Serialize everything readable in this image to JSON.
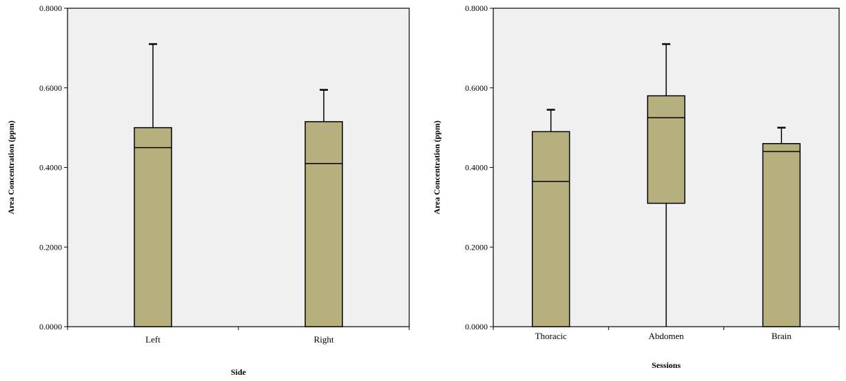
{
  "chart_data": [
    {
      "type": "box",
      "xlabel": "Side",
      "ylabel": "Area Concentration (ppm)",
      "ylim": [
        0,
        0.8
      ],
      "yticks": [
        "0.0000",
        "0.2000",
        "0.4000",
        "0.6000",
        "0.8000"
      ],
      "plot_background": "#f0f0f0",
      "box_color": "#b5b07e",
      "grid": false,
      "categories": [
        "Left",
        "Right"
      ],
      "boxes": [
        {
          "min": 0.0,
          "q1": 0.0,
          "median": 0.45,
          "q3": 0.5,
          "max": 0.71
        },
        {
          "min": 0.0,
          "q1": 0.0,
          "median": 0.41,
          "q3": 0.515,
          "max": 0.595
        }
      ]
    },
    {
      "type": "box",
      "xlabel": "Sessions",
      "ylabel": "Area Concentration (ppm)",
      "ylim": [
        0,
        0.8
      ],
      "yticks": [
        "0.0000",
        "0.2000",
        "0.4000",
        "0.6000",
        "0.8000"
      ],
      "plot_background": "#f0f0f0",
      "box_color": "#b5b07e",
      "grid": false,
      "categories": [
        "Thoracic",
        "Abdomen",
        "Brain"
      ],
      "boxes": [
        {
          "min": 0.0,
          "q1": 0.0,
          "median": 0.365,
          "q3": 0.49,
          "max": 0.545
        },
        {
          "min": 0.0,
          "q1": 0.31,
          "median": 0.525,
          "q3": 0.58,
          "max": 0.71
        },
        {
          "min": 0.0,
          "q1": 0.0,
          "median": 0.44,
          "q3": 0.46,
          "max": 0.5
        }
      ]
    }
  ]
}
